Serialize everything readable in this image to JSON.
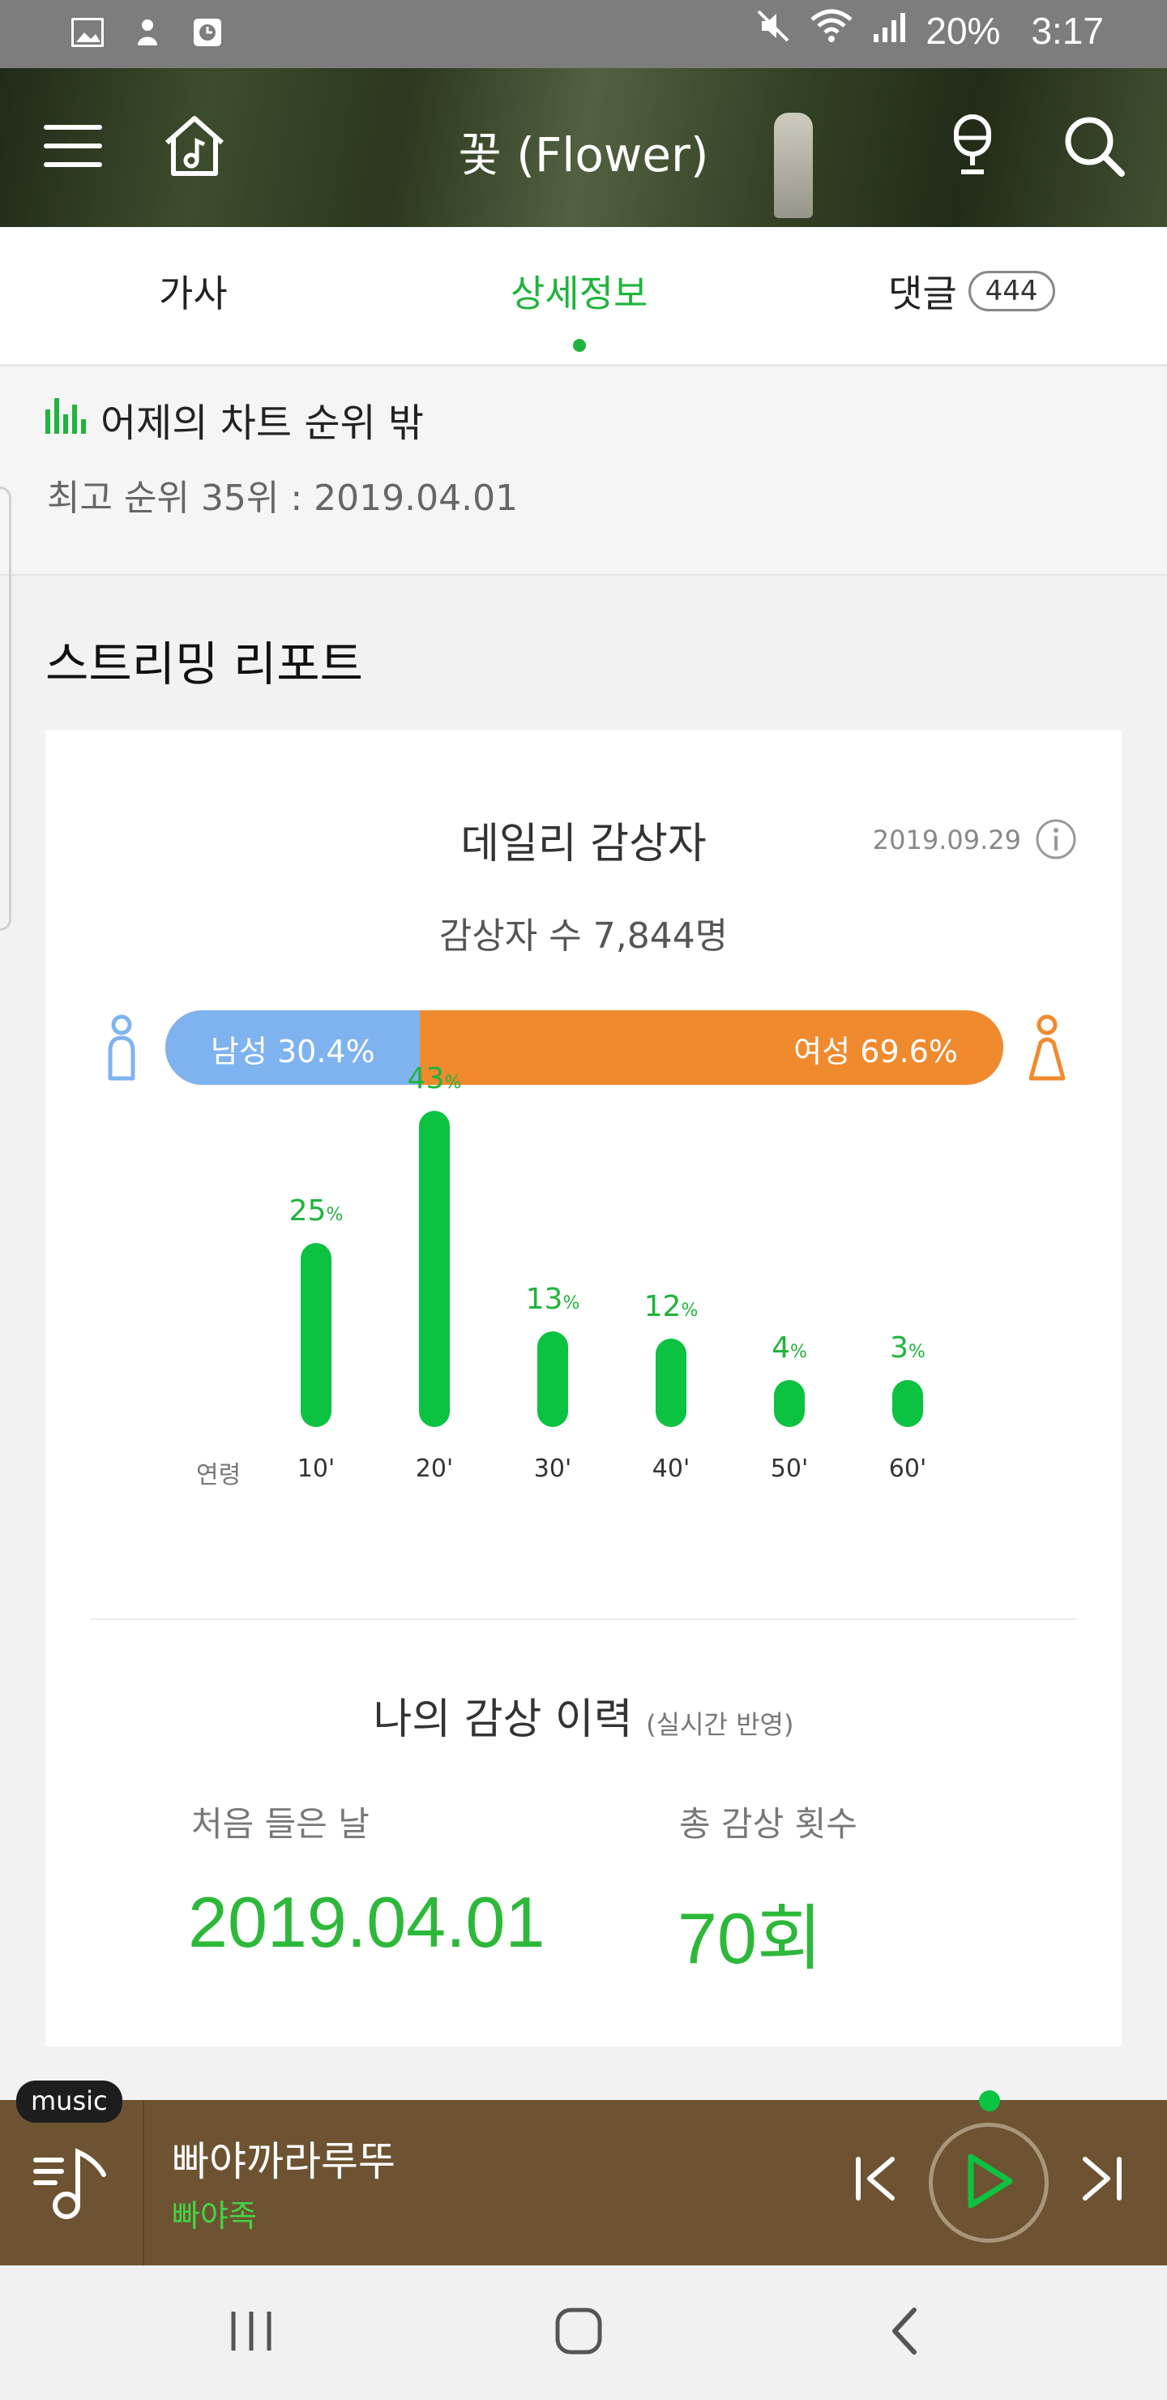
{
  "status_bar": {
    "battery": "20%",
    "time": "3:17",
    "icons": [
      "image-icon",
      "app-icon",
      "clock-icon",
      "mute-icon",
      "wifi-icon",
      "signal-icon"
    ]
  },
  "header": {
    "title": "꽃 (Flower)",
    "icons": [
      "menu-icon",
      "home-music-icon",
      "microphone-icon",
      "search-icon"
    ]
  },
  "tabs": {
    "lyrics": "가사",
    "detail": "상세정보",
    "comments": "댓글",
    "comments_count": "444",
    "active": "detail"
  },
  "chart_rank": {
    "status": "어제의 차트 순위 밖",
    "best": "최고 순위 35위 : 2019.04.01"
  },
  "report": {
    "title": "스트리밍 리포트",
    "daily_title": "데일리 감상자",
    "date": "2019.09.29",
    "listeners": "감상자 수 7,844명",
    "male_label": "남성 30.4%",
    "female_label": "여성 69.6%",
    "male_share": 0.304
  },
  "chart_data": {
    "type": "bar",
    "title": "",
    "xlabel": "연령",
    "ylabel": "",
    "categories": [
      "10'",
      "20'",
      "30'",
      "40'",
      "50'",
      "60'"
    ],
    "values": [
      25,
      43,
      13,
      12,
      4,
      3
    ],
    "unit": "%",
    "color": "#0cc241"
  },
  "history": {
    "title": "나의 감상 이력",
    "subtitle": "(실시간 반영)",
    "first_label": "처음 들은 날",
    "first_value": "2019.04.01",
    "count_label": "총 감상 횟수",
    "count_value": "70회"
  },
  "player": {
    "badge": "music",
    "track_title": "빠야까라루뚜",
    "artist": "빠야족"
  },
  "colors": {
    "accent_green": "#1fb43c",
    "male_blue": "#7fb3f0",
    "female_orange": "#f08a2e",
    "player_brown": "#6d5331"
  }
}
